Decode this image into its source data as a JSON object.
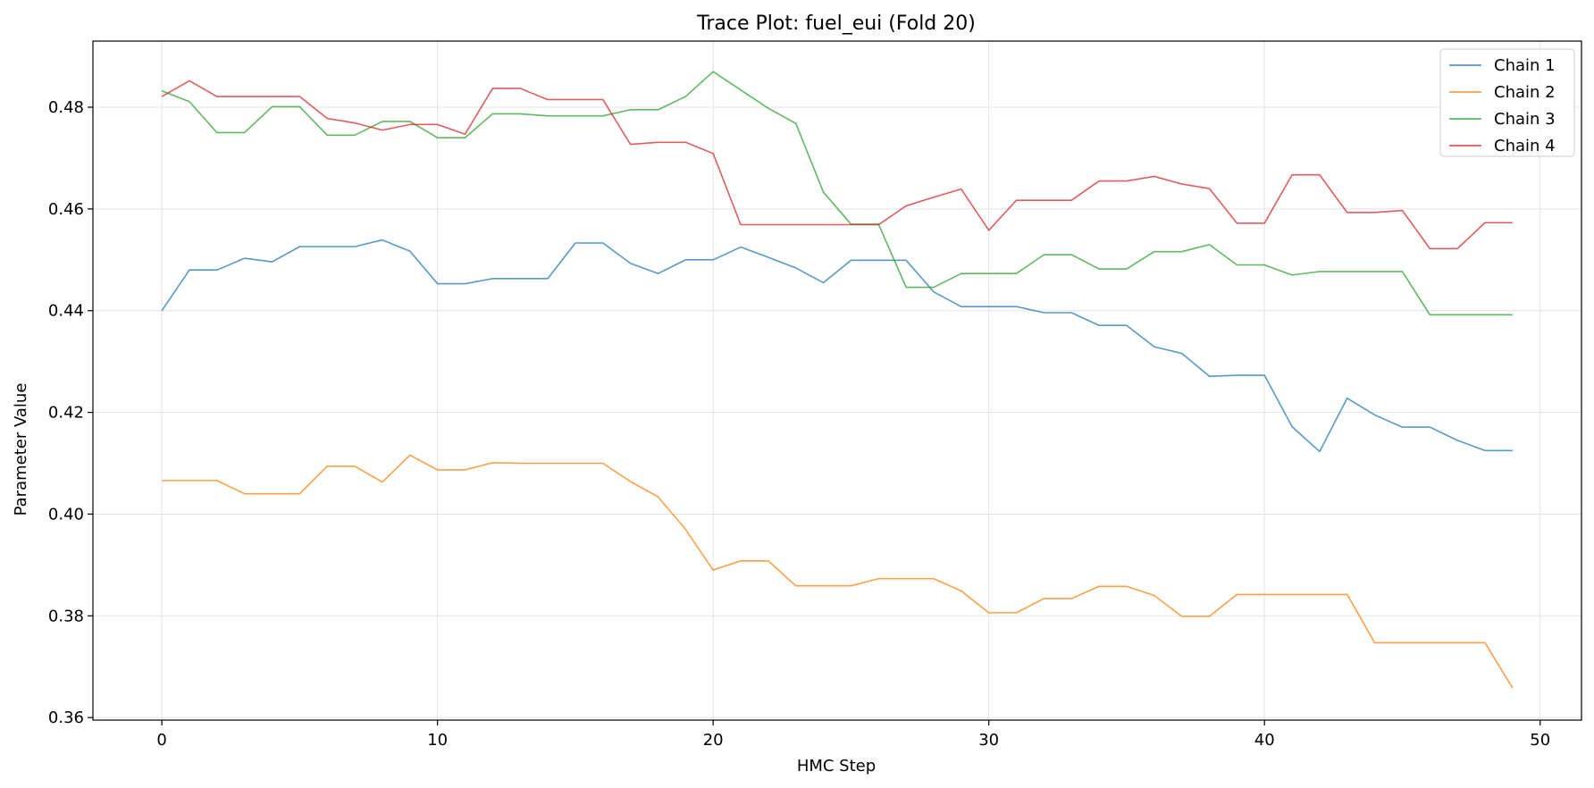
{
  "chart_data": {
    "type": "line",
    "title": "Trace Plot: fuel_eui (Fold 20)",
    "xlabel": "HMC Step",
    "ylabel": "Parameter Value",
    "xlim": [
      -2.5,
      51.5
    ],
    "ylim": [
      0.3595,
      0.493
    ],
    "xticks": [
      0,
      10,
      20,
      30,
      40,
      50
    ],
    "yticks": [
      0.36,
      0.38,
      0.4,
      0.42,
      0.44,
      0.46,
      0.48
    ],
    "ytick_labels": [
      "0.36",
      "0.38",
      "0.40",
      "0.42",
      "0.44",
      "0.46",
      "0.48"
    ],
    "grid": true,
    "legend_position": "top-right",
    "x": [
      0,
      1,
      2,
      3,
      4,
      5,
      6,
      7,
      8,
      9,
      10,
      11,
      12,
      13,
      14,
      15,
      16,
      17,
      18,
      19,
      20,
      21,
      22,
      23,
      24,
      25,
      26,
      27,
      28,
      29,
      30,
      31,
      32,
      33,
      34,
      35,
      36,
      37,
      38,
      39,
      40,
      41,
      42,
      43,
      44,
      45,
      46,
      47,
      48,
      49
    ],
    "series": [
      {
        "name": "Chain 1",
        "color": "#1f77b4",
        "values": [
          0.44,
          0.448,
          0.448,
          0.4503,
          0.4496,
          0.4526,
          0.4526,
          0.4526,
          0.4539,
          0.4517,
          0.4453,
          0.4453,
          0.4463,
          0.4463,
          0.4463,
          0.4533,
          0.4533,
          0.4493,
          0.4473,
          0.45,
          0.45,
          0.4525,
          0.4505,
          0.4484,
          0.4455,
          0.4499,
          0.4499,
          0.4499,
          0.4437,
          0.4408,
          0.4408,
          0.4408,
          0.4396,
          0.4396,
          0.4371,
          0.4371,
          0.4329,
          0.4316,
          0.4271,
          0.4273,
          0.4273,
          0.4172,
          0.4123,
          0.4228,
          0.4195,
          0.4171,
          0.4171,
          0.4145,
          0.4125,
          0.4125
        ]
      },
      {
        "name": "Chain 2",
        "color": "#ff7f0e",
        "values": [
          0.4066,
          0.4066,
          0.4066,
          0.404,
          0.404,
          0.404,
          0.4094,
          0.4094,
          0.4063,
          0.4116,
          0.4087,
          0.4087,
          0.4101,
          0.41,
          0.41,
          0.41,
          0.41,
          0.4064,
          0.4034,
          0.397,
          0.389,
          0.3908,
          0.3908,
          0.3859,
          0.3859,
          0.3859,
          0.3873,
          0.3873,
          0.3873,
          0.3849,
          0.3806,
          0.3806,
          0.3834,
          0.3834,
          0.3858,
          0.3858,
          0.384,
          0.3799,
          0.3799,
          0.3842,
          0.3842,
          0.3842,
          0.3842,
          0.3842,
          0.3747,
          0.3747,
          0.3747,
          0.3747,
          0.3747,
          0.3658
        ]
      },
      {
        "name": "Chain 3",
        "color": "#2ca02c",
        "values": [
          0.4832,
          0.4811,
          0.475,
          0.475,
          0.4801,
          0.4801,
          0.4745,
          0.4745,
          0.4772,
          0.4772,
          0.474,
          0.474,
          0.4787,
          0.4787,
          0.4783,
          0.4783,
          0.4783,
          0.4795,
          0.4795,
          0.4821,
          0.487,
          0.4834,
          0.4798,
          0.4768,
          0.4633,
          0.457,
          0.457,
          0.4446,
          0.4446,
          0.4473,
          0.4473,
          0.4473,
          0.451,
          0.451,
          0.4482,
          0.4482,
          0.4516,
          0.4516,
          0.453,
          0.449,
          0.449,
          0.447,
          0.4477,
          0.4477,
          0.4477,
          0.4477,
          0.4392,
          0.4392,
          0.4392,
          0.4392
        ]
      },
      {
        "name": "Chain 4",
        "color": "#d62728",
        "values": [
          0.4821,
          0.4852,
          0.4821,
          0.4821,
          0.4821,
          0.4821,
          0.4778,
          0.4769,
          0.4755,
          0.4766,
          0.4766,
          0.4747,
          0.4837,
          0.4837,
          0.4815,
          0.4815,
          0.4815,
          0.4727,
          0.4731,
          0.4731,
          0.4709,
          0.4569,
          0.4569,
          0.4569,
          0.4569,
          0.4569,
          0.4569,
          0.4606,
          0.4623,
          0.4639,
          0.4558,
          0.4617,
          0.4617,
          0.4617,
          0.4655,
          0.4655,
          0.4664,
          0.4649,
          0.464,
          0.4572,
          0.4572,
          0.4667,
          0.4667,
          0.4593,
          0.4593,
          0.4597,
          0.4522,
          0.4522,
          0.4573,
          0.4573
        ]
      }
    ]
  }
}
